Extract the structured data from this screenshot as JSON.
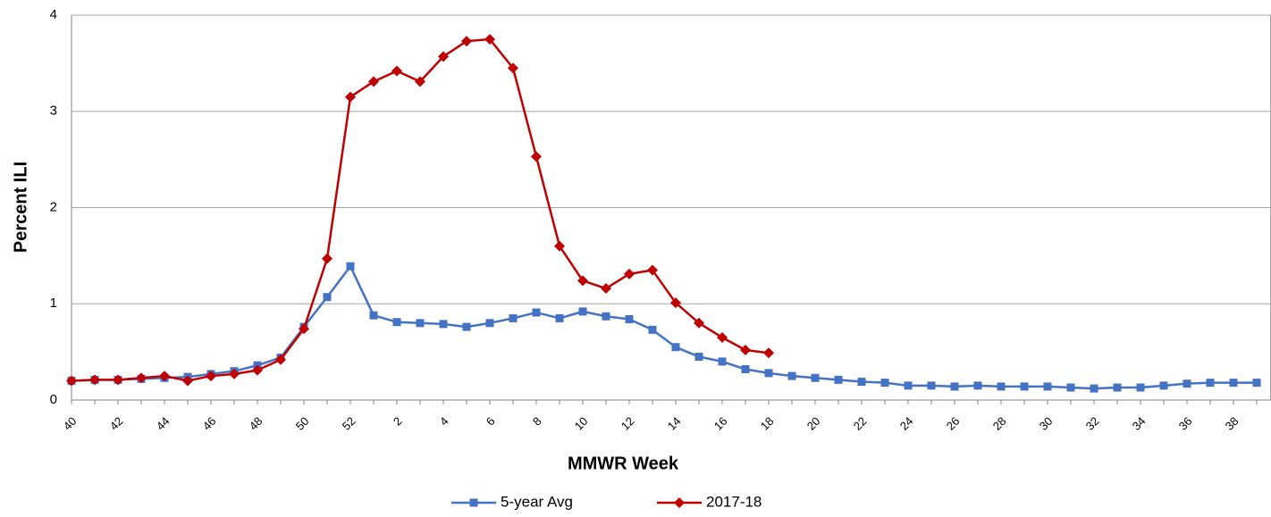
{
  "chart_data": {
    "type": "line",
    "x_label": "MMWR Week",
    "y_label": "Percent ILI",
    "categories": [
      "40",
      null,
      "42",
      null,
      "44",
      null,
      "46",
      null,
      "48",
      null,
      "50",
      null,
      "52",
      null,
      "2",
      null,
      "4",
      null,
      "6",
      null,
      "8",
      null,
      "10",
      null,
      "12",
      null,
      "14",
      null,
      "16",
      null,
      "18",
      null,
      "20",
      null,
      "22",
      null,
      "24",
      null,
      "26",
      null,
      "28",
      null,
      "30",
      null,
      "32",
      null,
      "34",
      null,
      "36",
      null,
      "38",
      null
    ],
    "series": [
      {
        "name": "5-year Avg",
        "color": "#4472c4",
        "marker": "square",
        "values": [
          0.2,
          0.21,
          0.21,
          0.22,
          0.23,
          0.24,
          0.27,
          0.3,
          0.36,
          0.44,
          0.76,
          1.07,
          1.39,
          0.88,
          0.81,
          0.8,
          0.79,
          0.76,
          0.8,
          0.85,
          0.91,
          0.85,
          0.92,
          0.87,
          0.84,
          0.73,
          0.55,
          0.45,
          0.4,
          0.32,
          0.28,
          0.25,
          0.23,
          0.21,
          0.19,
          0.18,
          0.15,
          0.15,
          0.14,
          0.15,
          0.14,
          0.14,
          0.14,
          0.13,
          0.12,
          0.13,
          0.13,
          0.15,
          0.17,
          0.18,
          0.18,
          0.18
        ]
      },
      {
        "name": "2017-18",
        "color": "#c00000",
        "marker": "diamond",
        "values": [
          0.2,
          0.21,
          0.21,
          0.23,
          0.25,
          0.2,
          0.25,
          0.27,
          0.31,
          0.42,
          0.74,
          1.47,
          3.15,
          3.31,
          3.42,
          3.31,
          3.57,
          3.73,
          3.75,
          3.45,
          2.53,
          1.6,
          1.24,
          1.16,
          1.31,
          1.35,
          1.01,
          0.8,
          0.65,
          0.52,
          0.49,
          null,
          null,
          null,
          null,
          null,
          null,
          null,
          null,
          null,
          null,
          null,
          null,
          null,
          null,
          null,
          null,
          null,
          null,
          null,
          null,
          null
        ]
      }
    ],
    "ylim": [
      0,
      4
    ],
    "yticks": [
      0,
      1,
      2,
      3,
      4
    ],
    "grid": true
  }
}
